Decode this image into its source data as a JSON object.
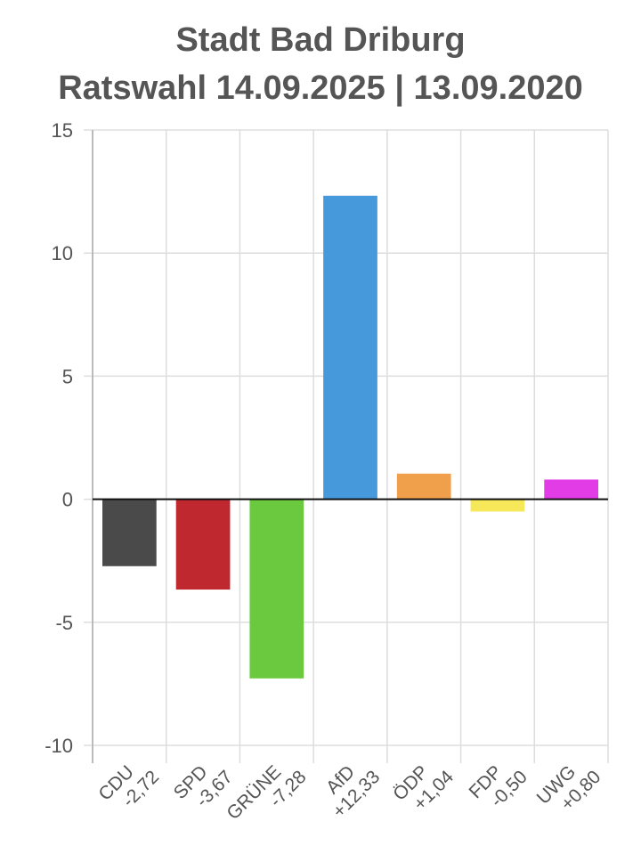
{
  "title_line1": "Stadt Bad Driburg",
  "title_line2": "Ratswahl 14.09.2025  | 13.09.2020",
  "chart_data": {
    "type": "bar",
    "categories": [
      "CDU",
      "SPD",
      "GRÜNE",
      "AfD",
      "ÖDP",
      "FDP",
      "UWG"
    ],
    "value_labels": [
      "-2,72",
      "-3,67",
      "-7,28",
      "+12,33",
      "+1,04",
      "-0,50",
      "+0,80"
    ],
    "values": [
      -2.72,
      -3.67,
      -7.28,
      12.33,
      1.04,
      -0.5,
      0.8
    ],
    "colors": [
      "#4a4a4a",
      "#c0282f",
      "#6bc940",
      "#4699da",
      "#f0a04b",
      "#f7e85a",
      "#e23ce6"
    ],
    "ylim": [
      -10,
      15
    ],
    "yticks": [
      "15",
      "10",
      "5",
      "0",
      "-5",
      "-10"
    ],
    "grid": true,
    "legend": "none"
  }
}
